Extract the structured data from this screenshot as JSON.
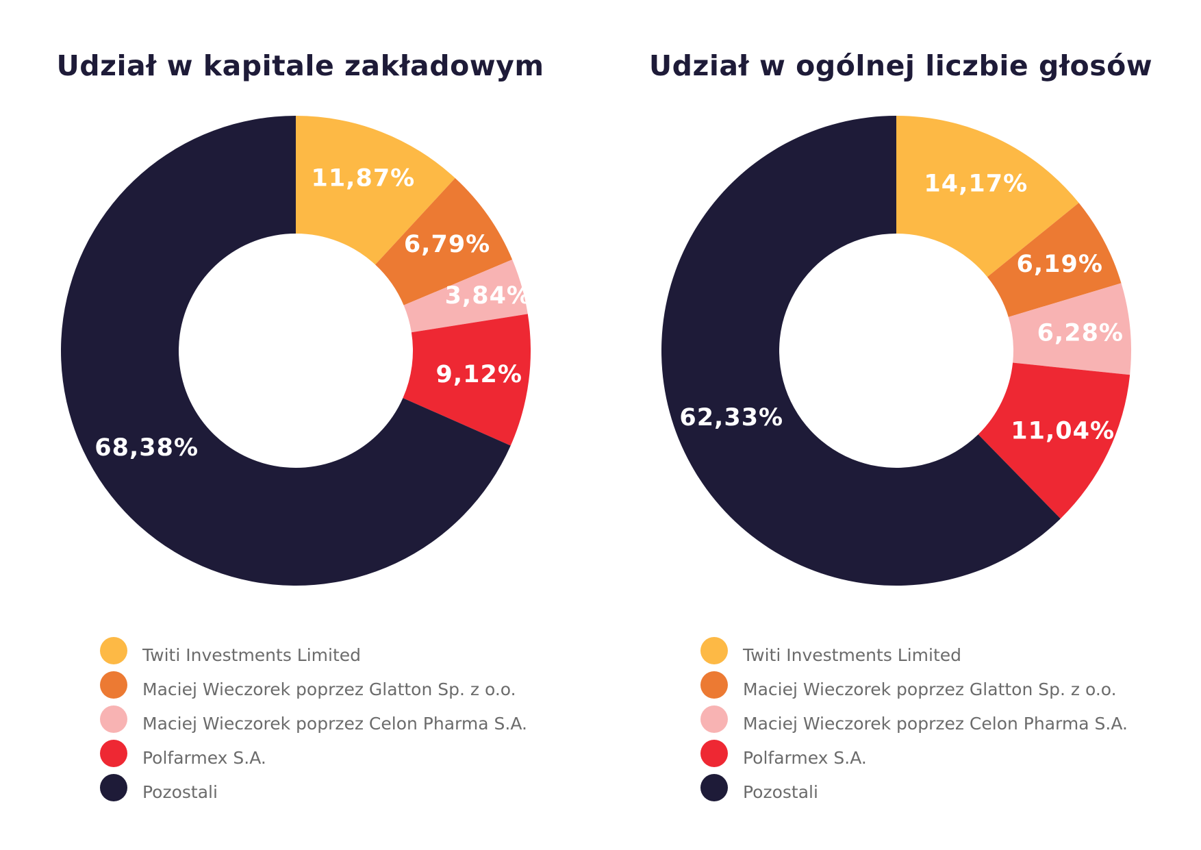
{
  "colors": {
    "twiti": "#fdb945",
    "glatton": "#ec7a33",
    "celon": "#f8b3b3",
    "polfarmex": "#ee2833",
    "pozostali": "#1e1b38"
  },
  "legend": [
    {
      "label": "Twiti Investments Limited",
      "color": "#fdb945"
    },
    {
      "label": "Maciej Wieczorek poprzez Glatton Sp. z o.o.",
      "color": "#ec7a33"
    },
    {
      "label": "Maciej Wieczorek poprzez Celon Pharma S.A.",
      "color": "#f8b3b3"
    },
    {
      "label": "Polfarmex S.A.",
      "color": "#ee2833"
    },
    {
      "label": "Pozostali",
      "color": "#1e1b38"
    }
  ],
  "chart_data": [
    {
      "type": "pie",
      "title": "Udział w kapitale zakładowym",
      "categories": [
        "Twiti Investments Limited",
        "Maciej Wieczorek poprzez Glatton Sp. z o.o.",
        "Maciej Wieczorek poprzez Celon Pharma S.A.",
        "Polfarmex S.A.",
        "Pozostali"
      ],
      "values": [
        11.87,
        6.79,
        3.84,
        9.12,
        68.38
      ],
      "labels": [
        "11,87%",
        "6,79%",
        "3,84%",
        "9,12%",
        "68,38%"
      ],
      "colors": [
        "#fdb945",
        "#ec7a33",
        "#f8b3b3",
        "#ee2833",
        "#1e1b38"
      ],
      "legend_position": "bottom"
    },
    {
      "type": "pie",
      "title": "Udział w ogólnej liczbie głosów",
      "categories": [
        "Twiti Investments Limited",
        "Maciej Wieczorek poprzez Glatton Sp. z o.o.",
        "Maciej Wieczorek poprzez Celon Pharma S.A.",
        "Polfarmex S.A.",
        "Pozostali"
      ],
      "values": [
        14.17,
        6.19,
        6.28,
        11.04,
        62.33
      ],
      "labels": [
        "14,17%",
        "6,19%",
        "6,28%",
        "11,04%",
        "62,33%"
      ],
      "colors": [
        "#fdb945",
        "#ec7a33",
        "#f8b3b3",
        "#ee2833",
        "#1e1b38"
      ],
      "legend_position": "bottom"
    }
  ]
}
